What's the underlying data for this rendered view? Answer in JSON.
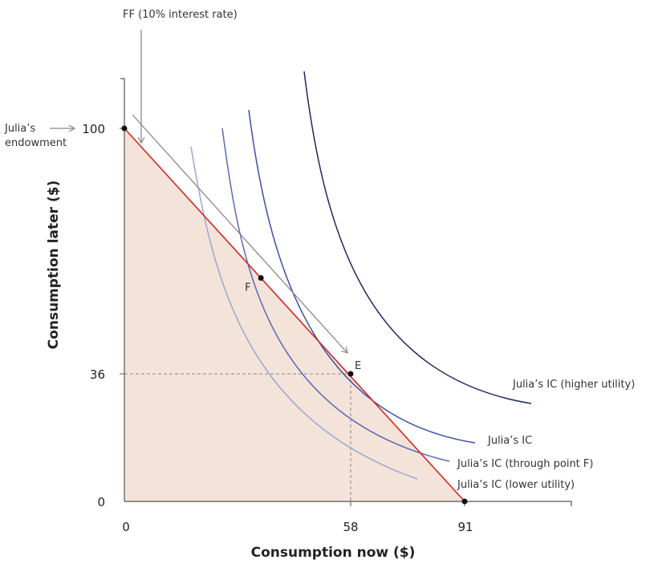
{
  "chart_data": {
    "type": "diagram",
    "xlabel": "Consumption now ($)",
    "ylabel": "Consumption later ($)",
    "x_ticks": [
      "0",
      "58",
      "91"
    ],
    "y_ticks": [
      "0",
      "36",
      "100"
    ],
    "budget_line": {
      "from": [
        0,
        100
      ],
      "to": [
        91,
        0
      ],
      "color": "#d7261e"
    },
    "feasible_set_fill": "#f4e3d9",
    "points": [
      {
        "label": "E",
        "x": 58,
        "y": 36
      },
      {
        "label": "F",
        "x": 35,
        "y": 61
      }
    ],
    "annotations": {
      "ff": "FF (10% interest rate)",
      "endowment_line1": "Julia’s",
      "endowment_line2": "endowment"
    },
    "curves": [
      {
        "name": "Julia’s IC (higher utility)",
        "color": "#1f2a5e"
      },
      {
        "name": "Julia’s IC",
        "color": "#3c4fa8"
      },
      {
        "name": "Julia’s IC (through point F)",
        "color": "#5a6bb8"
      },
      {
        "name": "Julia’s IC (lower utility)",
        "color": "#9aa6d6"
      }
    ]
  }
}
